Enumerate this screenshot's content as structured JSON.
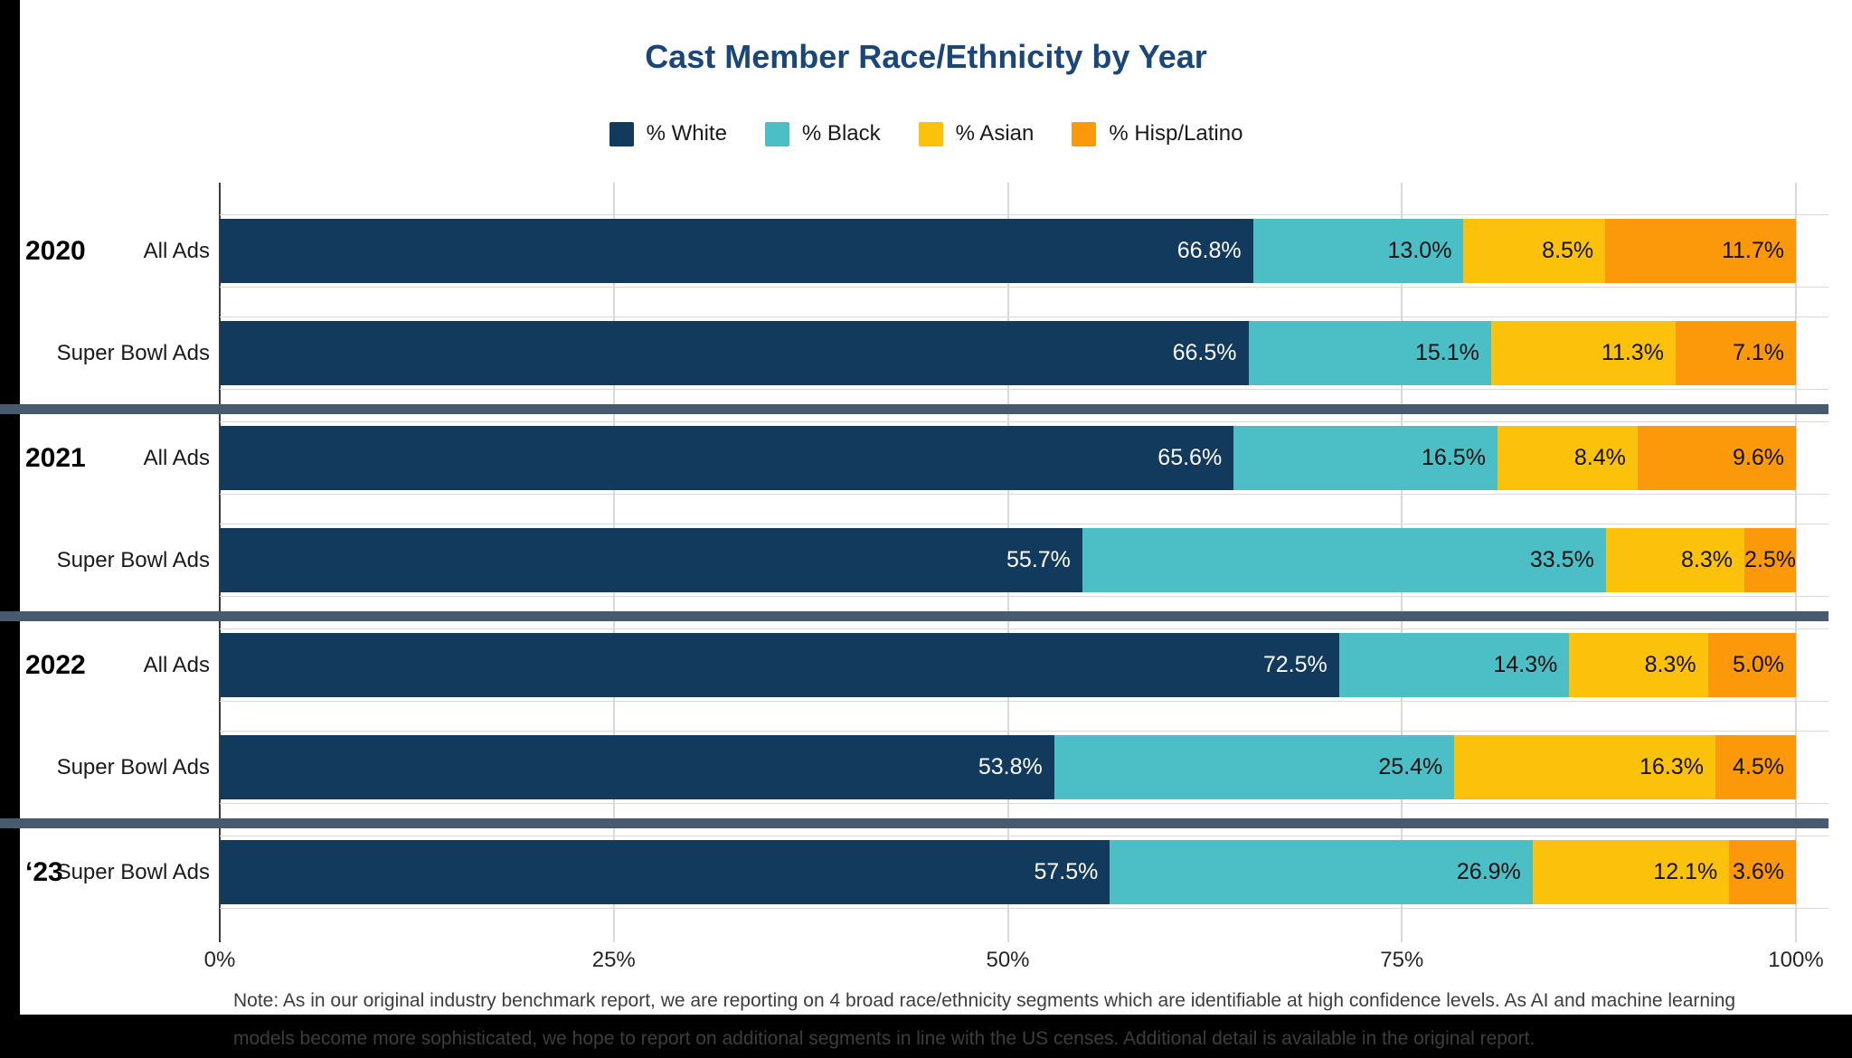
{
  "title": "Cast Member Race/Ethnicity by Year",
  "note": "Note: As in our original industry benchmark report, we are reporting on 4 broad race/ethnicity segments which are identifiable at high confidence levels. As AI and machine learning models become more sophisticated, we hope to report on additional segments in line with the US censes. Additional detail is available in the original report.",
  "colors": {
    "white_navy": "#123a5c",
    "black_teal": "#4bbec6",
    "asian_yellow": "#fcc10a",
    "hisp_orange": "#fb990a",
    "divider_slate": "#485a70",
    "title_navy": "#1b4778",
    "gridline_gray": "#d9d9d9",
    "axis_line_dark": "#3c3c3c"
  },
  "chart_data": {
    "type": "bar",
    "stacked": true,
    "orientation": "horizontal",
    "title": "Cast Member Race/Ethnicity by Year",
    "xlabel": "",
    "ylabel": "",
    "xlim": [
      0,
      100
    ],
    "grid": true,
    "legend_position": "top-center",
    "x_ticks": [
      "0%",
      "25%",
      "50%",
      "75%",
      "100%"
    ],
    "x_tick_values": [
      0,
      25,
      50,
      75,
      100
    ],
    "series": [
      {
        "name": "% White",
        "key": "white",
        "color": "#123a5c",
        "label_color": "#ffffff"
      },
      {
        "name": "% Black",
        "key": "black",
        "color": "#4bbec6",
        "label_color": "#111111"
      },
      {
        "name": "% Asian",
        "key": "asian",
        "color": "#fcc10a",
        "label_color": "#111111"
      },
      {
        "name": "% Hisp/Latino",
        "key": "hisp-latino",
        "color": "#fb990a",
        "label_color": "#111111"
      }
    ],
    "rows": [
      {
        "year": "2020",
        "category": "All Ads",
        "values": [
          66.8,
          13.0,
          8.5,
          11.7
        ],
        "divider_after": false
      },
      {
        "year": "",
        "category": "Super Bowl Ads",
        "values": [
          66.5,
          15.1,
          11.3,
          7.1
        ],
        "divider_after": true
      },
      {
        "year": "2021",
        "category": "All Ads",
        "values": [
          65.6,
          16.5,
          8.4,
          9.6
        ],
        "divider_after": false
      },
      {
        "year": "",
        "category": "Super Bowl Ads",
        "values": [
          55.7,
          33.5,
          8.3,
          2.5
        ],
        "divider_after": true
      },
      {
        "year": "2022",
        "category": "All Ads",
        "values": [
          72.5,
          14.3,
          8.3,
          5.0
        ],
        "divider_after": false
      },
      {
        "year": "",
        "category": "Super Bowl Ads",
        "values": [
          53.8,
          25.4,
          16.3,
          4.5
        ],
        "divider_after": true
      },
      {
        "year": "‘23",
        "category": "Super Bowl Ads",
        "values": [
          57.5,
          26.9,
          12.1,
          3.6
        ],
        "divider_after": false
      }
    ]
  }
}
